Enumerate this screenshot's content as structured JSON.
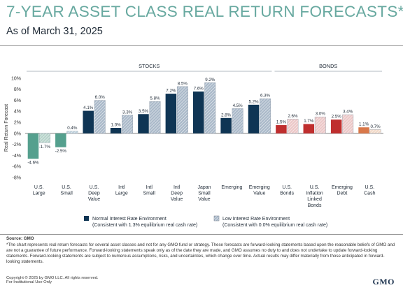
{
  "title": "7-YEAR ASSET CLASS REAL RETURN FORECASTS*",
  "subtitle": "As of March 31, 2025",
  "colors": {
    "title": "#68a9a0",
    "stocks_normal": "#0f3554",
    "stocks_low": "#aab9c9",
    "large_normal": "#55a08e",
    "large_low": "#b6d3ca",
    "small_low": "#bfd2de",
    "bonds_normal": "#bf2e2e",
    "bonds_low": "#ecc8c8",
    "cash_normal": "#d9784a",
    "cash_low": "#f1d9c8",
    "zero_line": "#555555"
  },
  "chart_data": {
    "type": "bar",
    "ylabel": "Real Return Forecast",
    "ylim": [
      -8,
      10
    ],
    "yticks": [
      "10%",
      "8%",
      "6%",
      "4%",
      "2%",
      "0%",
      "-2%",
      "-4%",
      "-6%",
      "-8%"
    ],
    "groups": [
      {
        "name": "STOCKS",
        "categories": [
          0,
          1,
          2,
          3,
          4,
          5,
          6,
          7,
          8
        ]
      },
      {
        "name": "BONDS",
        "categories": [
          9,
          10,
          11,
          12
        ]
      }
    ],
    "categories": [
      "U.S.\nLarge",
      "U.S.\nSmall",
      "U.S.\nDeep\nValue",
      "Intl\nLarge",
      "Intl\nSmall",
      "Intl\nDeep\nValue",
      "Japan\nSmall\nValue",
      "Emerging",
      "Emerging\nValue",
      "U.S.\nBonds",
      "U.S.\nInflation\nLinked\nBonds",
      "Emerging\nDebt",
      "U.S.\nCash"
    ],
    "series": [
      {
        "name": "Normal Interest Rate Environment",
        "note": "(Consistent with 1.3% equilibrium real cash rate)",
        "values": [
          -4.6,
          -2.5,
          4.1,
          1.0,
          3.5,
          7.2,
          7.6,
          2.8,
          5.2,
          1.5,
          1.7,
          2.5,
          1.1
        ],
        "labels": [
          "-4.6%",
          "-2.5%",
          "4.1%",
          "1.0%",
          "3.5%",
          "7.2%",
          "7.6%",
          "2.8%",
          "5.2%",
          "1.5%",
          "1.7%",
          "2.5%",
          "1.1%"
        ]
      },
      {
        "name": "Low Interest Rate Environment",
        "note": "(Consistent with 0.0% equilibrium real cash rate)",
        "values": [
          -1.7,
          0.4,
          6.0,
          3.3,
          5.8,
          8.5,
          9.2,
          4.5,
          6.3,
          2.6,
          3.0,
          3.4,
          0.7
        ],
        "labels": [
          "-1.7%",
          "0.4%",
          "6.0%",
          "3.3%",
          "5.8%",
          "8.5%",
          "9.2%",
          "4.5%",
          "6.3%",
          "2.6%",
          "3.0%",
          "3.4%",
          "0.7%"
        ]
      }
    ]
  },
  "footer": {
    "source": "Source: GMO",
    "disclaimer": "*The chart represents real return forecasts for several asset classes and not for any GMO fund or strategy. These forecasts are forward-looking statements based upon the reasonable beliefs of GMO and are not a guarantee of future performance. Forward-looking statements speak only as of the date they are made, and GMO assumes no duty to and does not undertake to update forward-looking statements. Forward-looking statements are subject to numerous assumptions, risks, and uncertainties, which change over time. Actual results may differ materially from those anticipated in forward-looking statements.",
    "copyright": "Copyright © 2025 by GMO LLC. All rights reserved.",
    "institutional": "For Institutional Use Only",
    "logo": "GMO"
  }
}
